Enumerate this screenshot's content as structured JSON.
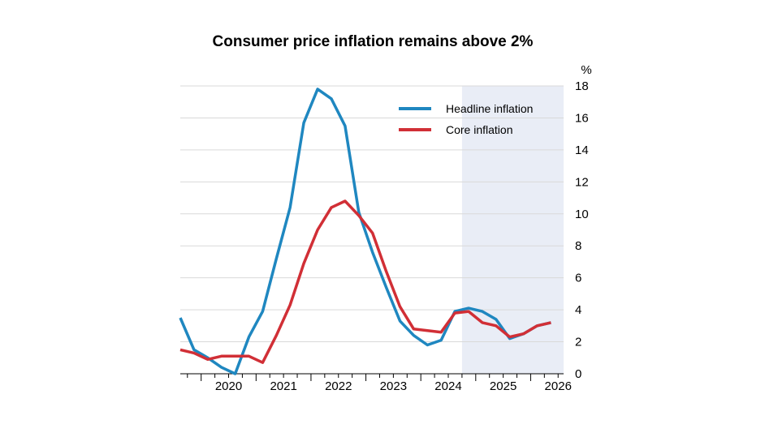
{
  "chart_data": {
    "type": "line",
    "title": "Consumer price inflation remains above 2%",
    "y_unit": "%",
    "ylim": [
      0,
      18
    ],
    "y_ticks": [
      0,
      2,
      4,
      6,
      8,
      10,
      12,
      14,
      16,
      18
    ],
    "x_ticks": [
      "2020",
      "2021",
      "2022",
      "2023",
      "2024",
      "2025",
      "2026"
    ],
    "x_range": [
      2019.62,
      2026.6
    ],
    "forecast_start": 2024.75,
    "grid": true,
    "legend_position": "top-right",
    "series": [
      {
        "name": "Headline inflation",
        "color": "#1f87c0",
        "x": [
          2019.62,
          2019.87,
          2020.12,
          2020.37,
          2020.62,
          2020.87,
          2021.12,
          2021.37,
          2021.62,
          2021.87,
          2022.12,
          2022.37,
          2022.62,
          2022.87,
          2023.12,
          2023.37,
          2023.62,
          2023.87,
          2024.12,
          2024.37,
          2024.62,
          2024.87,
          2025.12,
          2025.37,
          2025.62,
          2025.87,
          2026.12,
          2026.37
        ],
        "y": [
          3.5,
          1.5,
          1.0,
          0.4,
          0.0,
          2.3,
          3.9,
          7.2,
          10.4,
          15.7,
          17.8,
          17.2,
          15.5,
          10.1,
          7.6,
          5.4,
          3.3,
          2.4,
          1.8,
          2.1,
          3.9,
          4.1,
          3.9,
          3.4,
          2.2,
          2.5,
          3.0,
          3.2
        ]
      },
      {
        "name": "Core inflation",
        "color": "#d12f36",
        "x": [
          2019.62,
          2019.87,
          2020.12,
          2020.37,
          2020.62,
          2020.87,
          2021.12,
          2021.37,
          2021.62,
          2021.87,
          2022.12,
          2022.37,
          2022.62,
          2022.87,
          2023.12,
          2023.37,
          2023.62,
          2023.87,
          2024.12,
          2024.37,
          2024.62,
          2024.87,
          2025.12,
          2025.37,
          2025.62,
          2025.87,
          2026.12,
          2026.37
        ],
        "y": [
          1.5,
          1.3,
          0.9,
          1.1,
          1.1,
          1.1,
          0.7,
          2.4,
          4.3,
          6.9,
          9.0,
          10.4,
          10.8,
          9.9,
          8.8,
          6.4,
          4.2,
          2.8,
          2.7,
          2.6,
          3.8,
          3.9,
          3.2,
          3.0,
          2.3,
          2.5,
          3.0,
          3.2
        ]
      }
    ]
  }
}
